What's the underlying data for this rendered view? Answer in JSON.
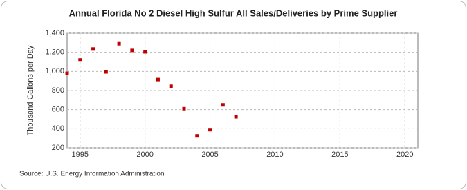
{
  "chart_data": {
    "type": "scatter",
    "title": "Annual Florida No 2 Diesel High Sulfur All Sales/Deliveries by Prime Supplier",
    "y_label": "Thousand Gallons per Day",
    "source": "Source: U.S. Energy Information Administration",
    "x": [
      1994,
      1995,
      1996,
      1997,
      1998,
      1999,
      2000,
      2001,
      2002,
      2003,
      2004,
      2005,
      2006,
      2007
    ],
    "series": [
      {
        "name": "Florida No 2 Diesel High Sulfur",
        "color": "#c00000",
        "values": [
          980,
          1120,
          1235,
          995,
          1290,
          1220,
          1205,
          915,
          845,
          610,
          325,
          390,
          650,
          525
        ]
      }
    ],
    "xlim": [
      1994,
      2021
    ],
    "xticks": [
      1995,
      2000,
      2005,
      2010,
      2015,
      2020
    ],
    "ylim": [
      200,
      1400
    ],
    "yticks": [
      200,
      400,
      600,
      800,
      {
        "value": 1000,
        "label": "1,000"
      },
      {
        "value": 1200,
        "label": "1,200"
      },
      {
        "value": 1400,
        "label": "1,400"
      }
    ],
    "grid": true
  }
}
